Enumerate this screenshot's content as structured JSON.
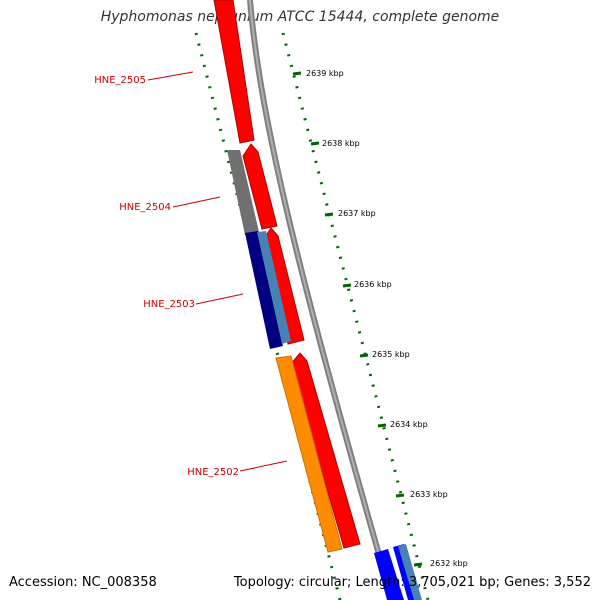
{
  "title": "Hyphomonas neptunium ATCC 15444, complete genome",
  "footer": {
    "accession": "Accession: NC_008358",
    "summary": "Topology: circular; Length: 3,705,021 bp; Genes: 3,552"
  },
  "colors": {
    "forward_cds": "#ff0000",
    "reverse_cds_dark": "#000080",
    "reverse_cds_light": "#4682b4",
    "grey_feature": "#707070",
    "orange_feature": "#ff8c00",
    "blue_feature": "#0000ff",
    "backbone": "#808080",
    "gc_ticks": "#006400",
    "gene_label": "#cc0000"
  },
  "ruler": {
    "ticks": [
      {
        "label": "2639 kbp"
      },
      {
        "label": "2638 kbp"
      },
      {
        "label": "2637 kbp"
      },
      {
        "label": "2636 kbp"
      },
      {
        "label": "2635 kbp"
      },
      {
        "label": "2634 kbp"
      },
      {
        "label": "2633 kbp"
      },
      {
        "label": "2632 kbp"
      }
    ]
  },
  "genes": [
    {
      "label": "HNE_2505"
    },
    {
      "label": "HNE_2504"
    },
    {
      "label": "HNE_2503"
    },
    {
      "label": "HNE_2502"
    }
  ]
}
